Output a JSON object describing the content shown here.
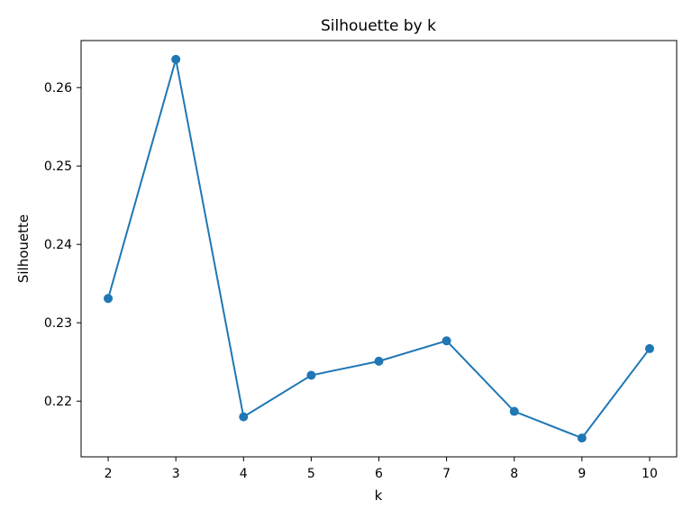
{
  "chart_data": {
    "type": "line",
    "title": "Silhouette by k",
    "xlabel": "k",
    "ylabel": "Silhouette",
    "x": [
      2,
      3,
      4,
      5,
      6,
      7,
      8,
      9,
      10
    ],
    "series": [
      {
        "values": [
          0.2331,
          0.2636,
          0.218,
          0.2233,
          0.2251,
          0.2277,
          0.2187,
          0.2153,
          0.2267
        ]
      }
    ],
    "xticks": [
      2,
      3,
      4,
      5,
      6,
      7,
      8,
      9,
      10
    ],
    "yticks": [
      0.22,
      0.23,
      0.24,
      0.25,
      0.26
    ],
    "xlim": [
      1.6,
      10.4
    ],
    "ylim": [
      0.2129,
      0.266
    ],
    "grid": false,
    "marker": "circle",
    "colors": {
      "line": "#1f77b4",
      "axes": "#000000",
      "background": "#ffffff"
    }
  }
}
